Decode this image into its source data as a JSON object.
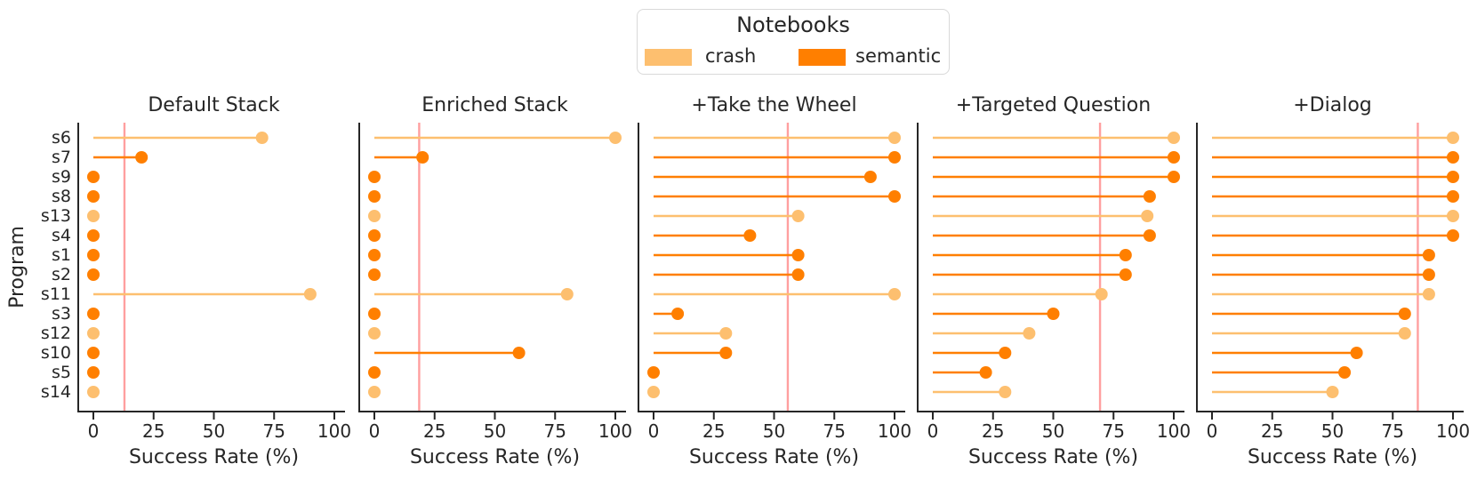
{
  "legend": {
    "title": "Notebooks",
    "entries": [
      {
        "label": "crash",
        "color": "#FDBF6F"
      },
      {
        "label": "semantic",
        "color": "#FF7F00"
      }
    ]
  },
  "colors": {
    "crash": "#FDBF6F",
    "semantic": "#FF7F00",
    "mean_line": "#FF8080",
    "spine": "#262626",
    "text": "#262626"
  },
  "chart_data": {
    "type": "lollipop",
    "orientation": "horizontal",
    "xlabel": "Success Rate (%)",
    "ylabel": "Program",
    "xlim": [
      0,
      100
    ],
    "xticks": [
      0,
      25,
      50,
      75,
      100
    ],
    "legend_title": "Notebooks",
    "series": [
      {
        "name": "crash",
        "color": "#FDBF6F"
      },
      {
        "name": "semantic",
        "color": "#FF7F00"
      }
    ],
    "programs": [
      {
        "name": "s6",
        "notebook": "crash"
      },
      {
        "name": "s7",
        "notebook": "semantic"
      },
      {
        "name": "s9",
        "notebook": "semantic"
      },
      {
        "name": "s8",
        "notebook": "semantic"
      },
      {
        "name": "s13",
        "notebook": "crash"
      },
      {
        "name": "s4",
        "notebook": "semantic"
      },
      {
        "name": "s1",
        "notebook": "semantic"
      },
      {
        "name": "s2",
        "notebook": "semantic"
      },
      {
        "name": "s11",
        "notebook": "crash"
      },
      {
        "name": "s3",
        "notebook": "semantic"
      },
      {
        "name": "s12",
        "notebook": "crash"
      },
      {
        "name": "s10",
        "notebook": "semantic"
      },
      {
        "name": "s5",
        "notebook": "semantic"
      },
      {
        "name": "s14",
        "notebook": "crash"
      }
    ],
    "panels": [
      {
        "title": "Default Stack",
        "mean_line": 12.9,
        "values": [
          70,
          20,
          0,
          0,
          0,
          0,
          0,
          0,
          90,
          0,
          0,
          0,
          0,
          0
        ]
      },
      {
        "title": "Enriched Stack",
        "mean_line": 18.6,
        "values": [
          100,
          20,
          0,
          0,
          0,
          0,
          0,
          0,
          80,
          0,
          0,
          60,
          0,
          0
        ]
      },
      {
        "title": "+Take the Wheel",
        "mean_line": 55.7,
        "values": [
          100,
          100,
          90,
          100,
          60,
          40,
          60,
          60,
          100,
          10,
          30,
          30,
          0,
          0
        ]
      },
      {
        "title": "+Targeted Question",
        "mean_line": 69.4,
        "values": [
          100,
          100,
          100,
          90,
          89,
          90,
          80,
          80,
          70,
          50,
          40,
          30,
          22,
          30
        ]
      },
      {
        "title": "+Dialog",
        "mean_line": 85.4,
        "values": [
          100,
          100,
          100,
          100,
          100,
          100,
          90,
          90,
          90,
          80,
          80,
          60,
          55,
          50
        ]
      }
    ]
  }
}
